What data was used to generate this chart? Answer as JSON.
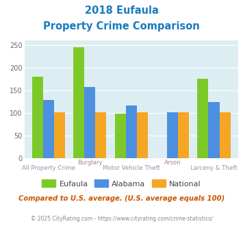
{
  "title_line1": "2018 Eufaula",
  "title_line2": "Property Crime Comparison",
  "groups": [
    "All Property Crime",
    "Burglary",
    "Motor Vehicle Theft",
    "Arson",
    "Larceny & Theft"
  ],
  "label_top": {
    "1": "Burglary",
    "3": "Arson"
  },
  "label_bottom": {
    "0": "All Property Crime",
    "2": "Motor Vehicle Theft",
    "4": "Larceny & Theft"
  },
  "eufaula": [
    180,
    245,
    99,
    null,
    176
  ],
  "alabama": [
    129,
    158,
    116,
    101,
    124
  ],
  "national": [
    101,
    101,
    101,
    101,
    101
  ],
  "eufaula_color": "#7dc92a",
  "alabama_color": "#4d8fe0",
  "national_color": "#f5a623",
  "bg_color": "#ddeef2",
  "ylim": [
    0,
    260
  ],
  "yticks": [
    0,
    50,
    100,
    150,
    200,
    250
  ],
  "subtitle": "Compared to U.S. average. (U.S. average equals 100)",
  "footer": "© 2025 CityRating.com - https://www.cityrating.com/crime-statistics/",
  "legend_labels": [
    "Eufaula",
    "Alabama",
    "National"
  ],
  "title_color": "#1a7bbf",
  "xlabel_color_top": "#aa8888",
  "xlabel_color_bottom": "#8899aa",
  "subtitle_color": "#cc5500",
  "footer_color": "#888888"
}
